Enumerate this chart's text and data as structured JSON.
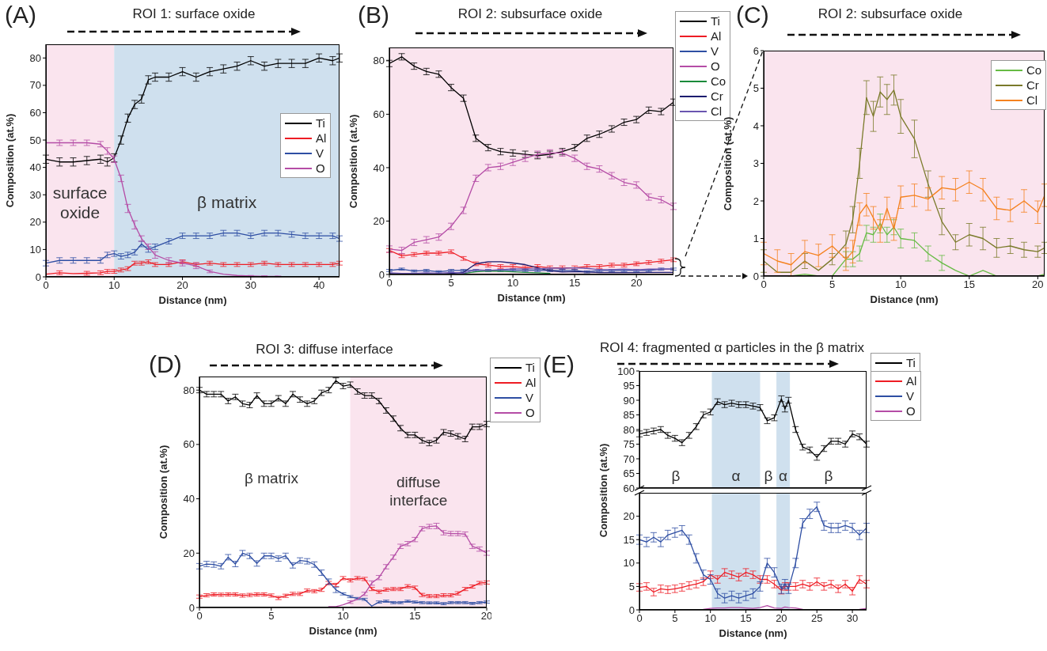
{
  "chart_data": [
    {
      "type": "line",
      "title": "ROI 1: surface oxide",
      "annotations": [
        "(A)"
      ],
      "xlabel": "Distance (nm)",
      "ylabel": "Composition (at.%)",
      "x": [
        0,
        2,
        4,
        6,
        8,
        9,
        10,
        11,
        12,
        13,
        14,
        15,
        16,
        18,
        20,
        22,
        24,
        26,
        28,
        30,
        32,
        34,
        36,
        38,
        40,
        42,
        43
      ],
      "xlim": [
        0,
        43
      ],
      "xticks": [
        0,
        10,
        20,
        30,
        40
      ],
      "ylim": [
        0,
        85
      ],
      "yticks": [
        0,
        10,
        20,
        30,
        40,
        50,
        60,
        70,
        80
      ],
      "legend": "right",
      "bands": [
        {
          "axis": "x",
          "from": 0,
          "to": 10,
          "label": "surface oxide",
          "color": "#fae4ee"
        },
        {
          "axis": "x",
          "from": 10,
          "to": 43,
          "label": "β matrix",
          "color": "#cfe0ee"
        }
      ],
      "series": [
        {
          "name": "Ti",
          "color": "#000000",
          "values": [
            43,
            42,
            42,
            42.5,
            43,
            42,
            43.5,
            50,
            58,
            63,
            65,
            72,
            73,
            73,
            75,
            73,
            75,
            76,
            77,
            79,
            77,
            78,
            78,
            78,
            80,
            79,
            80
          ],
          "errors": [
            1.5,
            1.5,
            1.5,
            1.5,
            1.5,
            1.5,
            1.5,
            1.5,
            1.5,
            1.5,
            1.5,
            1.5,
            1.5,
            1.5,
            1.5,
            1.5,
            1.5,
            1.5,
            1.5,
            1.5,
            1.5,
            1.5,
            1.5,
            1.5,
            1.5,
            1.5,
            1.5
          ]
        },
        {
          "name": "Al",
          "color": "#ee1c24",
          "values": [
            1,
            1.5,
            1.2,
            1.3,
            1.5,
            2,
            2,
            2.5,
            3,
            5,
            5,
            5.5,
            4.5,
            4.5,
            5.5,
            4.5,
            5,
            4.5,
            4.5,
            4.5,
            5,
            4.5,
            4.5,
            4.5,
            4.5,
            4.5,
            5
          ],
          "errors": [
            null,
            0.7,
            null,
            0.7,
            0.7,
            0.7,
            0.7,
            0.7,
            0.7,
            0.7,
            0.7,
            0.7,
            0.7,
            0.7,
            0.7,
            0.7,
            0.7,
            0.7,
            0.7,
            0.7,
            0.7,
            0.7,
            0.7,
            0.7,
            0.7,
            0.7,
            0.7
          ]
        },
        {
          "name": "V",
          "color": "#2e4ea3",
          "values": [
            5,
            6,
            6,
            6,
            6,
            8,
            8.5,
            7.5,
            8,
            9,
            12,
            10,
            11,
            13,
            15,
            15,
            15,
            16,
            16,
            15,
            16,
            16,
            15.5,
            15,
            15,
            15,
            14
          ],
          "errors": [
            1,
            1,
            1,
            1,
            1,
            1,
            1,
            1,
            1,
            1,
            1,
            1,
            1,
            1,
            1,
            1,
            1,
            1,
            1,
            1,
            1,
            1,
            1,
            1,
            1,
            1,
            1
          ]
        },
        {
          "name": "O",
          "color": "#b54ca6",
          "values": [
            49,
            49,
            49,
            49,
            48.5,
            46,
            43,
            36,
            25,
            19,
            14,
            11,
            8,
            6,
            5,
            4,
            2,
            1,
            0.5,
            0.3,
            0.2,
            0.2,
            null,
            null,
            null,
            null,
            null
          ],
          "errors": [
            null,
            1,
            1,
            1,
            1,
            1.2,
            1.2,
            1.2,
            1.5,
            1.5,
            1,
            1,
            1.2,
            1,
            1,
            1,
            0.5,
            null,
            null,
            0.2,
            0.2,
            0.1,
            null,
            null,
            null,
            null,
            null
          ]
        }
      ]
    },
    {
      "type": "line",
      "title": "ROI 2: subsurface oxide",
      "annotations": [
        "(B)"
      ],
      "xlabel": "Distance (nm)",
      "ylabel": "Composition (at.%)",
      "x": [
        0,
        1,
        2,
        3,
        4,
        5,
        6,
        7,
        8,
        9,
        10,
        11,
        12,
        13,
        14,
        15,
        16,
        17,
        18,
        19,
        20,
        21,
        22,
        23
      ],
      "xlim": [
        0,
        23
      ],
      "xticks": [
        0,
        5,
        10,
        15,
        20
      ],
      "ylim": [
        0,
        85
      ],
      "yticks": [
        0,
        20,
        40,
        60,
        80
      ],
      "legend": "top right",
      "bands": [
        {
          "axis": "x",
          "from": 0,
          "to": 23,
          "color": "#fae4ee"
        }
      ],
      "series": [
        {
          "name": "Ti",
          "color": "#000000",
          "values": [
            79,
            81.5,
            78,
            76,
            75,
            70,
            66,
            51,
            47.5,
            46,
            45.5,
            45,
            44.5,
            45,
            46,
            47.5,
            51,
            52.5,
            54.5,
            57,
            58,
            61.5,
            61,
            64.5
          ],
          "errors": [
            1.2,
            1.2,
            1.2,
            1.2,
            1.2,
            1.2,
            1.2,
            1.2,
            1.2,
            1.2,
            1.2,
            1.2,
            1.2,
            1.2,
            1.2,
            1.2,
            1.2,
            1.2,
            1.2,
            1.2,
            1.2,
            1.2,
            1.2,
            1.2
          ]
        },
        {
          "name": "Al",
          "color": "#ee1c24",
          "values": [
            9,
            7,
            7.5,
            8,
            8,
            8.5,
            6,
            4,
            3.5,
            3,
            3,
            2.5,
            3,
            2.5,
            2.5,
            2.5,
            3,
            3,
            3.5,
            3.5,
            4,
            4.5,
            5,
            5.5
          ],
          "errors": [
            0.7,
            0.7,
            0.7,
            0.7,
            0.7,
            0.7,
            0.7,
            0.7,
            0.7,
            0.7,
            0.7,
            0.7,
            0.7,
            0.7,
            0.7,
            0.7,
            0.7,
            0.7,
            0.7,
            0.7,
            0.7,
            0.7,
            0.7,
            0.7
          ]
        },
        {
          "name": "V",
          "color": "#2e4ea3",
          "values": [
            1.5,
            2,
            1.3,
            1.5,
            1,
            1.5,
            1.5,
            1.5,
            1.5,
            1.5,
            1.5,
            1.5,
            1.5,
            1.5,
            1.5,
            1.5,
            1,
            1.5,
            1.5,
            1.5,
            1.5,
            1.5,
            2,
            2
          ],
          "errors": [
            0.4,
            0.4,
            0.4,
            0.4,
            0.4,
            0.4,
            0.4,
            0.4,
            0.4,
            0.4,
            0.4,
            0.4,
            0.4,
            0.4,
            0.4,
            0.4,
            0.4,
            0.4,
            0.4,
            0.4,
            0.4,
            0.4,
            0.4,
            0.4
          ]
        },
        {
          "name": "O",
          "color": "#b54ca6",
          "values": [
            9.5,
            9,
            12,
            13,
            14,
            18,
            24,
            36,
            40,
            40.5,
            42,
            43.5,
            45,
            45.5,
            45.5,
            43.5,
            40.5,
            39.5,
            37,
            34.5,
            33.5,
            29,
            28,
            25.5
          ],
          "errors": [
            1.2,
            1.2,
            1.2,
            1.2,
            1.2,
            1.2,
            1.2,
            1.2,
            1.2,
            1.2,
            1.2,
            1.2,
            1.2,
            1.2,
            1.2,
            1.2,
            1.2,
            1.2,
            1.2,
            1.2,
            1.2,
            1.2,
            1.2,
            1.2
          ]
        },
        {
          "name": "Co",
          "color": "#1a8a3a",
          "values": [
            null,
            null,
            null,
            null,
            null,
            null,
            0.4,
            1,
            1.3,
            1.2,
            1,
            0.8,
            0.6,
            0.4,
            null,
            null,
            null,
            null,
            null,
            null,
            null,
            null,
            null,
            null
          ]
        },
        {
          "name": "Cr",
          "color": "#1c1c6e",
          "values": [
            0.4,
            0.1,
            0.1,
            0.3,
            0.1,
            0.4,
            0.8,
            4,
            4.8,
            4.8,
            4.3,
            3.7,
            2.5,
            1.4,
            0.9,
            1.1,
            0.9,
            0.7,
            0.8,
            0.7,
            0.7,
            0.8,
            0.8,
            0.8
          ]
        },
        {
          "name": "Cl",
          "color": "#6a55b0",
          "values": [
            0.6,
            0.4,
            0.4,
            0.6,
            0.5,
            0.8,
            0.5,
            1.8,
            1.5,
            1.8,
            2.1,
            2.1,
            2.1,
            2.4,
            2.3,
            2.5,
            2.3,
            1.8,
            1.8,
            2,
            1.7,
            2,
            2,
            2
          ]
        }
      ]
    },
    {
      "type": "line",
      "title": "ROI 2: subsurface oxide",
      "annotations": [
        "(C)"
      ],
      "xlabel": "Distance (nm)",
      "ylabel": "Composition (at.%)",
      "x": [
        0,
        1,
        2,
        3,
        4,
        5,
        6,
        6.5,
        7,
        7.5,
        8,
        8.5,
        9,
        9.5,
        10,
        11,
        12,
        13,
        14,
        15,
        16,
        17,
        18,
        19,
        20,
        20.5
      ],
      "xlim": [
        0,
        20.5
      ],
      "xticks": [
        0,
        5,
        10,
        15,
        20
      ],
      "ylim": [
        0,
        6
      ],
      "yticks": [
        0,
        1,
        2,
        3,
        4,
        5,
        6
      ],
      "legend": "top right",
      "bands": [
        {
          "axis": "x",
          "from": 0,
          "to": 20.5,
          "color": "#fae4ee"
        }
      ],
      "series": [
        {
          "name": "Co",
          "color": "#66bb44",
          "values": [
            0,
            0,
            0,
            0.05,
            0,
            0,
            0.45,
            0.45,
            0.6,
            1.15,
            1.1,
            1.4,
            1.1,
            1.3,
            1.0,
            0.95,
            0.6,
            0.35,
            0.15,
            0,
            0.15,
            0,
            0,
            0,
            0,
            0.05
          ],
          "errors": [
            null,
            null,
            null,
            null,
            null,
            null,
            0.2,
            0.2,
            0.2,
            0.2,
            0.2,
            0.25,
            0.2,
            0.2,
            0.25,
            0.2,
            0.2,
            0.2,
            null,
            null,
            null,
            null,
            null,
            null,
            null,
            null
          ]
        },
        {
          "name": "Cr",
          "color": "#7a7a2a",
          "values": [
            0.4,
            0.1,
            0.1,
            0.4,
            0.15,
            0.45,
            0.85,
            1.5,
            3.0,
            4.75,
            4.25,
            4.9,
            4.7,
            4.95,
            4.25,
            3.65,
            2.45,
            1.45,
            0.9,
            1.1,
            1.0,
            0.75,
            0.8,
            0.7,
            0.65,
            0.75
          ],
          "errors": [
            0.3,
            null,
            null,
            0.2,
            null,
            0.15,
            0.35,
            0.35,
            0.4,
            0.45,
            0.4,
            0.4,
            0.4,
            0.4,
            0.45,
            0.5,
            0.35,
            0.35,
            0.2,
            0.3,
            0.3,
            0.25,
            0.2,
            0.2,
            0.15,
            0.15
          ]
        },
        {
          "name": "Cl",
          "color": "#f5821f",
          "values": [
            0.6,
            0.4,
            0.3,
            0.65,
            0.55,
            0.8,
            0.45,
            0.65,
            1.65,
            1.9,
            1.55,
            1.2,
            1.8,
            1.25,
            2.1,
            2.15,
            2.05,
            2.35,
            2.3,
            2.5,
            2.3,
            1.8,
            1.75,
            2.0,
            1.7,
            2.15
          ],
          "errors": [
            0.3,
            0.3,
            0.3,
            0.3,
            0.3,
            0.3,
            0.3,
            0.3,
            0.3,
            0.3,
            0.3,
            0.3,
            0.3,
            0.3,
            0.3,
            0.3,
            0.3,
            0.3,
            0.3,
            0.3,
            0.3,
            0.3,
            0.3,
            0.3,
            0.3,
            0.3
          ]
        }
      ]
    },
    {
      "type": "line",
      "title": "ROI 3: diffuse interface",
      "annotations": [
        "(D)",
        "β matrix"
      ],
      "xlabel": "Distance (nm)",
      "ylabel": "Composition (at.%)",
      "x": [
        0,
        0.5,
        1,
        1.5,
        2,
        2.5,
        3,
        3.5,
        4,
        4.5,
        5,
        5.5,
        6,
        6.5,
        7,
        7.5,
        8,
        8.5,
        9,
        9.5,
        10,
        10.5,
        11,
        11.5,
        12,
        12.5,
        13,
        13.5,
        14,
        14.5,
        15,
        15.5,
        16,
        16.5,
        17,
        17.5,
        18,
        18.5,
        19,
        19.5,
        20
      ],
      "xlim": [
        0,
        20
      ],
      "xticks": [
        0,
        5,
        10,
        15,
        20
      ],
      "ylim": [
        0,
        85
      ],
      "yticks": [
        0,
        20,
        40,
        60,
        80
      ],
      "legend": "top right",
      "bands": [
        {
          "axis": "x",
          "from": 10.5,
          "to": 20,
          "label": "diffuse interface",
          "color": "#fae4ee"
        }
      ],
      "series": [
        {
          "name": "Ti",
          "color": "#000000",
          "values": [
            80,
            78.5,
            78.5,
            78.5,
            76,
            77.5,
            75,
            74.5,
            78,
            75,
            75,
            77,
            75,
            78.5,
            76.5,
            75,
            76,
            79,
            80,
            83.5,
            81.5,
            82,
            79.5,
            78,
            78,
            76,
            72.5,
            69.5,
            66,
            63.5,
            63.5,
            61.5,
            60.5,
            61.5,
            64.5,
            64,
            63,
            62,
            66.5,
            66.5,
            67.5
          ],
          "errors": [
            1,
            1,
            1,
            1,
            1,
            1,
            1,
            1,
            1,
            1,
            1,
            1,
            1,
            1,
            1,
            1,
            1,
            1,
            1,
            1,
            1,
            1,
            1,
            1,
            1,
            1,
            1,
            1,
            1,
            1,
            1,
            1,
            1,
            1,
            1,
            1,
            1,
            1,
            1,
            1,
            1
          ]
        },
        {
          "name": "Al",
          "color": "#ee1c24",
          "values": [
            4,
            4.5,
            4.8,
            4.7,
            4.8,
            4.8,
            4.4,
            4.6,
            4.8,
            4.8,
            4.4,
            3.5,
            4.3,
            5,
            5,
            6.2,
            6,
            6.5,
            9,
            8.3,
            10.8,
            10,
            10.8,
            10.5,
            6.8,
            5.8,
            6.6,
            6.8,
            6.8,
            7.8,
            7.3,
            4.6,
            4.2,
            4.2,
            4.5,
            4.5,
            5.2,
            6.8,
            7.7,
            9,
            9.2
          ],
          "errors": [
            0.6,
            0.6,
            0.6,
            0.6,
            0.6,
            0.6,
            0.6,
            0.6,
            0.6,
            0.6,
            0.6,
            0.6,
            0.6,
            0.6,
            0.6,
            0.6,
            0.6,
            0.6,
            0.6,
            0.6,
            0.6,
            0.6,
            0.6,
            0.6,
            0.6,
            0.6,
            0.6,
            0.6,
            0.6,
            0.6,
            0.6,
            0.6,
            0.6,
            0.6,
            0.6,
            0.6,
            0.6,
            0.6,
            0.6,
            0.6,
            0.6
          ]
        },
        {
          "name": "V",
          "color": "#2e4ea3",
          "values": [
            15.2,
            16,
            15.8,
            15.2,
            18.5,
            16,
            20,
            19,
            16.2,
            19,
            19,
            18,
            19,
            15.5,
            17.3,
            17,
            15.8,
            12.8,
            9.5,
            6.5,
            5,
            4,
            3.3,
            3,
            0.5,
            2,
            2.3,
            1.8,
            1.8,
            2.3,
            2,
            1.8,
            1.7,
            1.7,
            1.4,
            1.8,
            1.8,
            1.8,
            1.5,
            1.8,
            2
          ],
          "errors": [
            1,
            1,
            1,
            1,
            1,
            1,
            1,
            1,
            1,
            1,
            1,
            1,
            1,
            1,
            1,
            1,
            1,
            1,
            1,
            1,
            0.4,
            0.4,
            0.4,
            0.4,
            null,
            0.4,
            0.4,
            0.4,
            0.4,
            0.4,
            0.4,
            0.4,
            0.4,
            0.4,
            0.4,
            0.4,
            0.4,
            0.4,
            0.4,
            0.4,
            0.4
          ]
        },
        {
          "name": "O",
          "color": "#b54ca6",
          "values": [
            null,
            null,
            null,
            null,
            null,
            null,
            null,
            null,
            null,
            null,
            null,
            null,
            null,
            null,
            null,
            null,
            null,
            null,
            0.3,
            0.3,
            1,
            2,
            3,
            5,
            9,
            11,
            15,
            18.5,
            22.5,
            23.5,
            25,
            29,
            29.8,
            30,
            27.5,
            27.2,
            27.2,
            27,
            22.5,
            21.5,
            20
          ],
          "errors": [
            null,
            null,
            null,
            null,
            null,
            null,
            null,
            null,
            null,
            null,
            null,
            null,
            null,
            null,
            null,
            null,
            null,
            null,
            null,
            null,
            null,
            0.5,
            null,
            0.6,
            0.8,
            0.8,
            0.8,
            0.8,
            0.8,
            0.8,
            0.8,
            0.8,
            0.8,
            1,
            0.8,
            0.8,
            0.8,
            0.8,
            0.8,
            0.8,
            0.8
          ]
        }
      ]
    },
    {
      "type": "line",
      "title": "ROI 4: fragmented α particles in the β matrix",
      "annotations": [
        "(E)",
        "β",
        "β",
        "β"
      ],
      "tick_labels": "y",
      "x": [
        0,
        1,
        2,
        3,
        4,
        5,
        6,
        7,
        8,
        9,
        10,
        11,
        12,
        13,
        14,
        15,
        16,
        17,
        18,
        19,
        20,
        20.5,
        21,
        22,
        23,
        24,
        25,
        26,
        27,
        28,
        29,
        30,
        31,
        32
      ],
      "xlim": [
        0,
        32
      ],
      "xticks": [
        0,
        5,
        10,
        15,
        20,
        25,
        30
      ],
      "ylim": [
        60,
        100
      ],
      "yticks": [
        60,
        65,
        70,
        75,
        80,
        85,
        90,
        95,
        100
      ],
      "legend": "top right",
      "bands": [
        {
          "axis": "x",
          "from": 10.2,
          "to": 17,
          "label": "α",
          "color": "#cfe0ee"
        },
        {
          "axis": "x",
          "from": 19.3,
          "to": 21.2,
          "label": "α",
          "color": "#cfe0ee"
        }
      ],
      "series": [
        {
          "name": "Ti",
          "color": "#000000",
          "values": [
            78.5,
            79,
            79.5,
            80,
            78,
            77,
            75.5,
            78,
            81,
            85,
            86,
            89.5,
            88.5,
            89,
            88.5,
            88.5,
            88,
            87.5,
            83,
            84,
            90.5,
            87,
            90,
            80,
            74,
            73,
            70.5,
            73.5,
            76,
            76,
            75,
            78.5,
            77.5,
            75
          ],
          "errors": [
            1,
            1,
            1,
            1,
            1,
            1,
            1,
            1,
            1,
            1,
            1,
            1,
            1,
            1,
            1,
            1,
            1,
            1,
            1,
            1,
            1,
            1,
            1,
            1,
            1,
            1,
            1,
            1,
            1,
            1,
            1,
            1,
            1,
            1
          ]
        }
      ]
    },
    {
      "type": "line",
      "xlabel": "Distance (nm)",
      "ylabel": "Composition (at.%)",
      "x": [
        0,
        1,
        2,
        3,
        4,
        5,
        6,
        7,
        8,
        9,
        10,
        11,
        12,
        13,
        14,
        15,
        16,
        17,
        18,
        19,
        20,
        20.5,
        21,
        22,
        23,
        24,
        25,
        26,
        27,
        28,
        29,
        30,
        31,
        32
      ],
      "xlim": [
        0,
        32
      ],
      "xticks": [
        0,
        5,
        10,
        15,
        20,
        25,
        30
      ],
      "ylim": [
        0,
        25
      ],
      "yticks": [
        0,
        5,
        10,
        15,
        20
      ],
      "legend": "top right",
      "bands": [
        {
          "axis": "x",
          "from": 10.2,
          "to": 17,
          "color": "#cfe0ee"
        },
        {
          "axis": "x",
          "from": 19.3,
          "to": 21.2,
          "color": "#cfe0ee"
        }
      ],
      "series": [
        {
          "name": "Al",
          "color": "#ee1c24",
          "values": [
            4.8,
            5,
            3.8,
            4.5,
            4.3,
            4.5,
            4.8,
            5.2,
            5.5,
            6,
            7.5,
            6.5,
            8,
            7.5,
            7,
            8,
            7.5,
            6.5,
            6.5,
            5.5,
            4.2,
            5,
            5,
            5,
            5.5,
            5,
            6,
            5,
            5.5,
            4.5,
            5.5,
            4,
            6.5,
            5.5
          ],
          "errors": [
            0.8,
            0.8,
            0.8,
            0.8,
            0.8,
            0.8,
            0.8,
            0.8,
            0.8,
            0.8,
            0.8,
            0.8,
            0.8,
            0.8,
            0.8,
            0.8,
            0.8,
            0.8,
            0.8,
            0.8,
            0.8,
            0.8,
            0.8,
            0.8,
            0.8,
            0.8,
            0.8,
            0.8,
            0.8,
            0.8,
            0.8,
            0.8,
            0.8,
            0.8
          ]
        },
        {
          "name": "V",
          "color": "#2e4ea3",
          "values": [
            15,
            14.5,
            15.5,
            14.5,
            16,
            16.5,
            17,
            15,
            11,
            7.5,
            6.5,
            3.5,
            2.5,
            3,
            2.5,
            3,
            3.5,
            5,
            10,
            8,
            4.5,
            5.5,
            4.5,
            10,
            18.5,
            20.5,
            22,
            18,
            17.5,
            17.5,
            18,
            17.5,
            16,
            17.5
          ],
          "errors": [
            1,
            1,
            1,
            1,
            1,
            1,
            1,
            1,
            1,
            1,
            1,
            1,
            1,
            1,
            1,
            1,
            1,
            1,
            1,
            1,
            1,
            1,
            1,
            1,
            1,
            1,
            1,
            1,
            1,
            1,
            1,
            1,
            1,
            1
          ]
        },
        {
          "name": "O",
          "color": "#b54ca6",
          "values": [
            null,
            null,
            null,
            null,
            null,
            null,
            null,
            null,
            null,
            0.1,
            0.3,
            0.4,
            0.4,
            0.5,
            0.5,
            0.4,
            0.3,
            0.5,
            0.9,
            0.4,
            0.3,
            0.6,
            0.5,
            0.4,
            0.1,
            null,
            null,
            null,
            null,
            null,
            null,
            null,
            0.1,
            0.3
          ]
        }
      ]
    }
  ]
}
